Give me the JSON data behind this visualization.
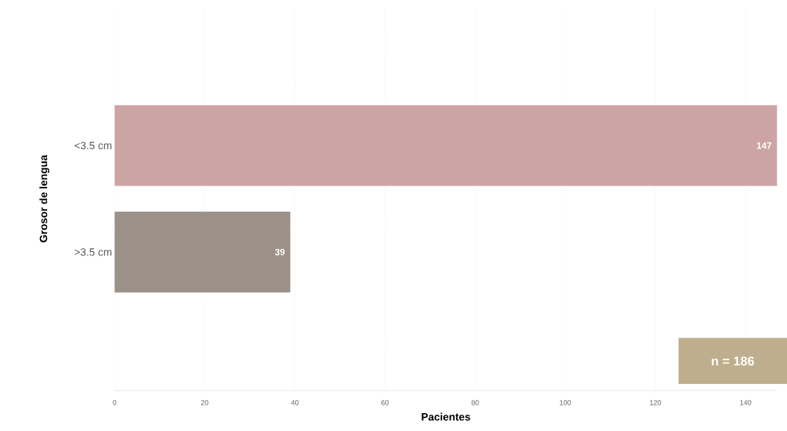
{
  "chart_data": {
    "type": "bar",
    "orientation": "horizontal",
    "xlabel": "Pacientes",
    "ylabel": "Grosor de lengua",
    "categories": [
      "<3.5 cm",
      ">3.5 cm"
    ],
    "values": [
      147,
      39
    ],
    "colors": [
      "#cda4a4",
      "#9b9188"
    ],
    "xlim": [
      0,
      147
    ],
    "xticks": [
      0,
      20,
      40,
      60,
      80,
      100,
      120,
      140
    ],
    "grid": "x",
    "data_labels": true,
    "annotations": [
      "n = 186"
    ]
  }
}
